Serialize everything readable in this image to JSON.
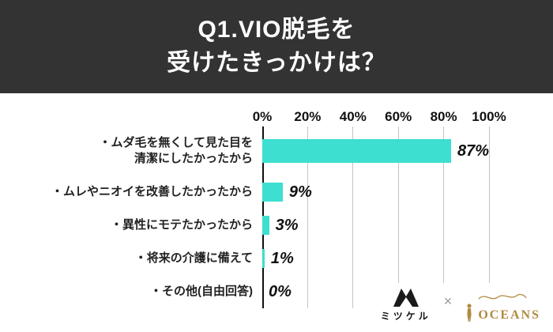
{
  "title": {
    "line1": "Q1.VIO脱毛を",
    "line2": "受けたきっかけは？"
  },
  "chart_data": {
    "type": "bar",
    "orientation": "horizontal",
    "title": "Q1.VIO脱毛を 受けたきっかけは？",
    "xlabel": "",
    "ylabel": "",
    "xlim": [
      0,
      100
    ],
    "grid": true,
    "legend": false,
    "bar_color": "#3ddfd0",
    "axis_line_color": "#111111",
    "grid_color": "#c4c4c4",
    "x_ticks": [
      {
        "label": "0%",
        "value": 0
      },
      {
        "label": "20%",
        "value": 20
      },
      {
        "label": "40%",
        "value": 40
      },
      {
        "label": "60%",
        "value": 60
      },
      {
        "label": "80%",
        "value": 80
      },
      {
        "label": "100%",
        "value": 100
      }
    ],
    "categories": [
      {
        "lines": [
          "・ムダ毛を無くして見た目を",
          "清潔にしたかったから"
        ],
        "value": 87,
        "value_label": "87%"
      },
      {
        "lines": [
          "・ムレやニオイを改善したかったから"
        ],
        "value": 9,
        "value_label": "9%"
      },
      {
        "lines": [
          "・異性にモテたかったから"
        ],
        "value": 3,
        "value_label": "3%"
      },
      {
        "lines": [
          "・将来の介護に備えて"
        ],
        "value": 1,
        "value_label": "1%"
      },
      {
        "lines": [
          "・その他(自由回答)"
        ],
        "value": 0,
        "value_label": "0%"
      }
    ]
  },
  "footer": {
    "mitsukeru_label": "ミツケル",
    "separator": "×",
    "oceans_label": "OCEANS"
  }
}
